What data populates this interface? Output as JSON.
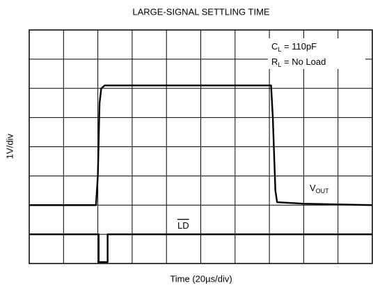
{
  "chart_data": {
    "type": "line",
    "title": "LARGE-SIGNAL SETTLING TIME",
    "xlabel": "Time (20µs/div)",
    "ylabel": "1V/div",
    "xlim": [
      0,
      200
    ],
    "ylim": [
      0,
      8
    ],
    "xticks": [
      0,
      20,
      40,
      60,
      80,
      100,
      120,
      140,
      160,
      180,
      200
    ],
    "yticks": [
      0,
      1,
      2,
      3,
      4,
      5,
      6,
      7,
      8
    ],
    "grid": true,
    "color": "#000000",
    "annotations": [
      {
        "text": "C",
        "sub": "L",
        "rest": " = 110pF"
      },
      {
        "text": "R",
        "sub": "L",
        "rest": " = No Load"
      }
    ],
    "series": [
      {
        "label": {
          "text": "V",
          "sub": "OUT"
        },
        "x": [
          0,
          38.9,
          40,
          41,
          42,
          44,
          141,
          142,
          143.5,
          144.5,
          160,
          200
        ],
        "y": [
          2,
          2,
          3,
          5.5,
          6,
          6.1,
          6.1,
          5,
          2.5,
          2.1,
          2.05,
          2.0
        ]
      },
      {
        "label": {
          "text": "LD",
          "overline": true
        },
        "x": [
          0,
          40.5,
          40.5,
          45.7,
          45.7,
          200
        ],
        "y": [
          1,
          1,
          0.05,
          0.05,
          1,
          1
        ]
      }
    ]
  }
}
